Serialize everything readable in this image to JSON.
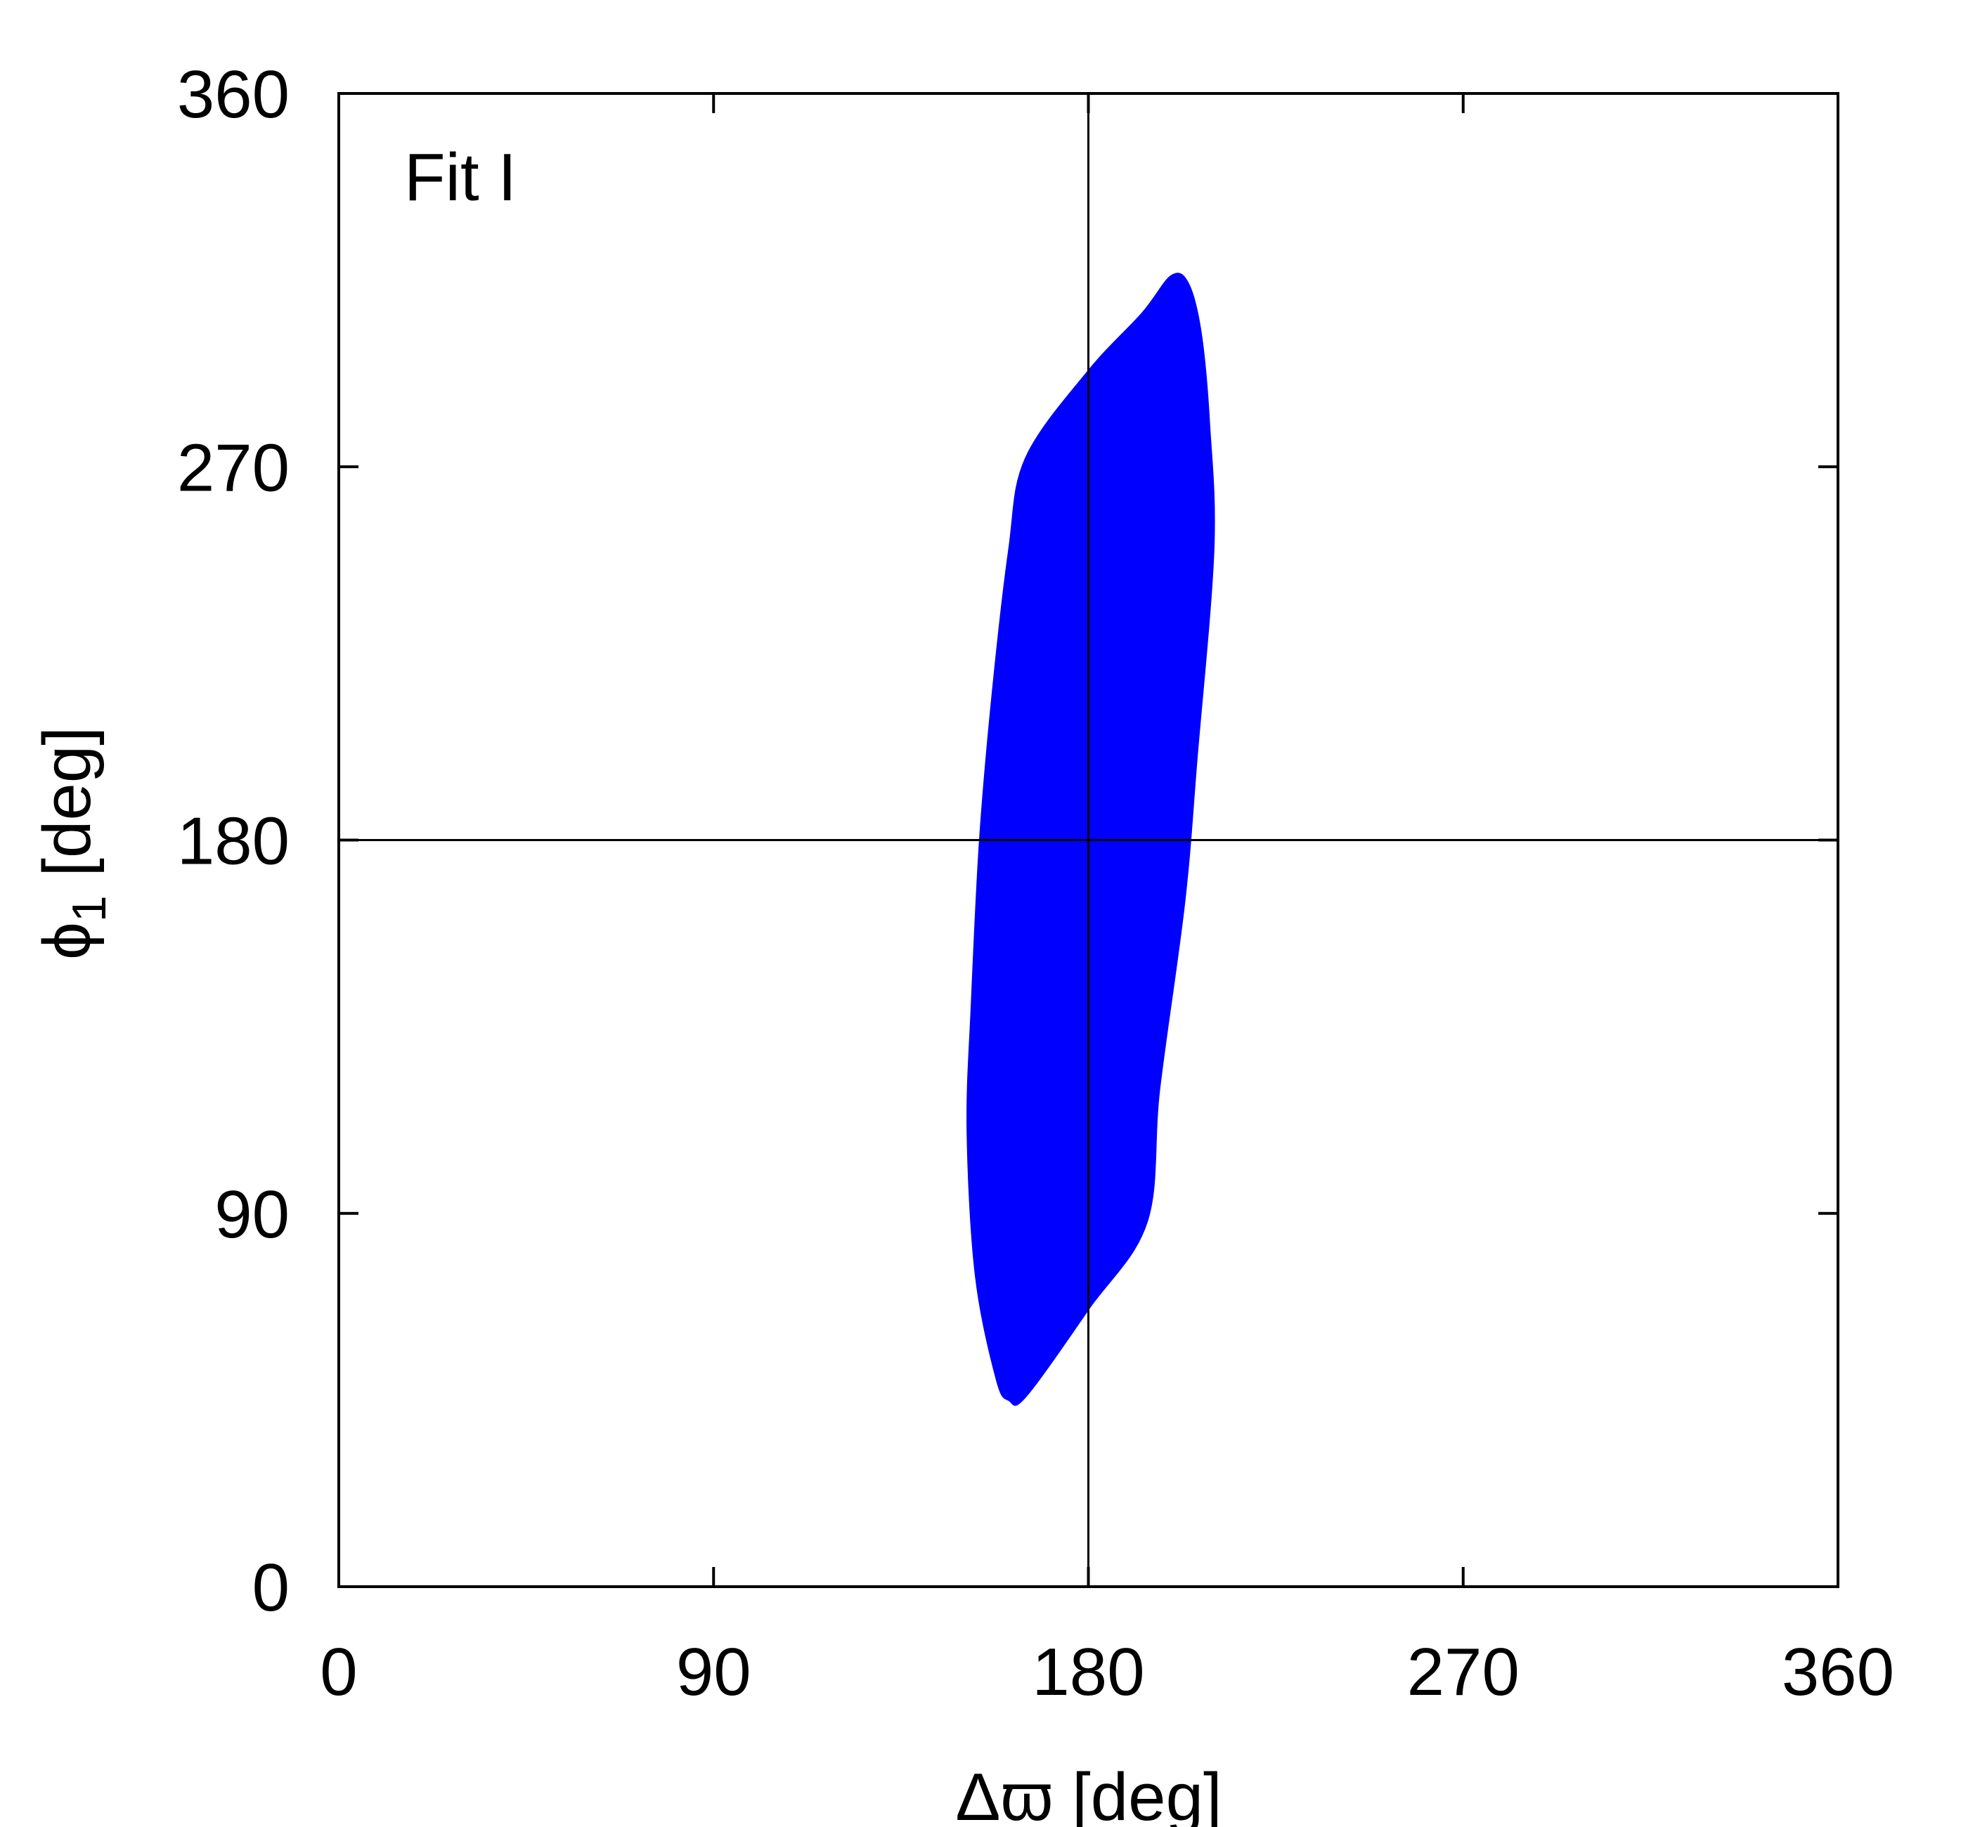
{
  "chart_data": {
    "type": "scatter",
    "title": "",
    "annotation": "Fit I",
    "xlabel": {
      "main": "Δϖ [deg]"
    },
    "ylabel": {
      "symbol": "ϕ",
      "subscript": "1",
      "rest": " [deg]"
    },
    "xlim": [
      0,
      360
    ],
    "ylim": [
      0,
      360
    ],
    "xticks": [
      0,
      90,
      180,
      270,
      360
    ],
    "yticks": [
      0,
      90,
      180,
      270,
      360
    ],
    "reference_lines": {
      "x": 180,
      "y": 180
    },
    "grid": false,
    "legend": "none",
    "point_color": "#0000ff",
    "series": [
      {
        "marker": "dense point cloud (filled region)",
        "outline_points": [
          {
            "x": 200,
            "y": 316
          },
          {
            "x": 204,
            "y": 314
          },
          {
            "x": 207,
            "y": 302
          },
          {
            "x": 209,
            "y": 280
          },
          {
            "x": 210,
            "y": 250
          },
          {
            "x": 206,
            "y": 200
          },
          {
            "x": 203,
            "y": 165
          },
          {
            "x": 197,
            "y": 120
          },
          {
            "x": 194,
            "y": 88
          },
          {
            "x": 180,
            "y": 67
          },
          {
            "x": 165,
            "y": 46
          },
          {
            "x": 161,
            "y": 45
          },
          {
            "x": 158,
            "y": 50
          },
          {
            "x": 153,
            "y": 75
          },
          {
            "x": 151,
            "y": 110
          },
          {
            "x": 152,
            "y": 140
          },
          {
            "x": 154,
            "y": 180
          },
          {
            "x": 157,
            "y": 215
          },
          {
            "x": 161,
            "y": 250
          },
          {
            "x": 165,
            "y": 272
          },
          {
            "x": 180,
            "y": 293
          },
          {
            "x": 193,
            "y": 307
          }
        ]
      }
    ]
  }
}
